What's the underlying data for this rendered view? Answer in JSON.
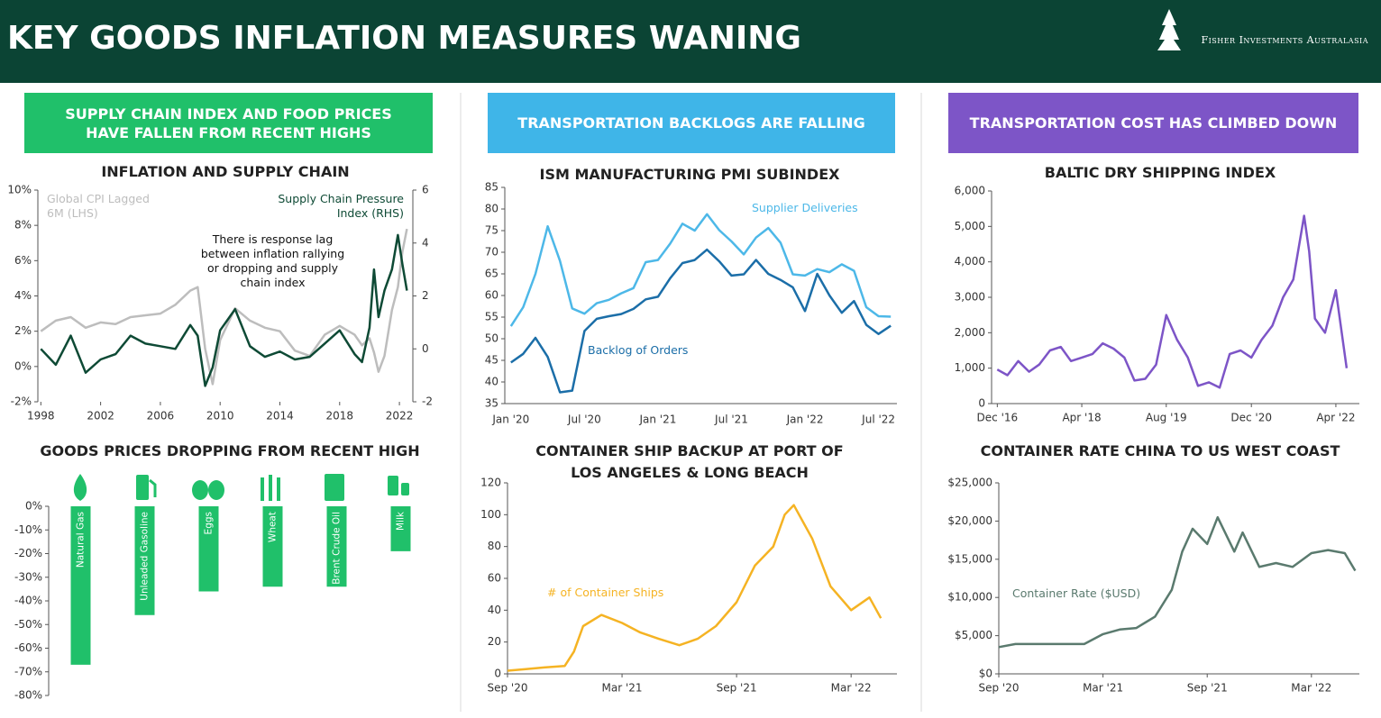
{
  "header": {
    "title": "KEY GOODS INFLATION MEASURES WANING",
    "logo": "Fisher Investments Australasia"
  },
  "banners": [
    "SUPPLY CHAIN INDEX AND FOOD PRICES HAVE FALLEN FROM RECENT HIGHS",
    "TRANSPORTATION BACKLOGS ARE FALLING",
    "TRANSPORTATION COST HAS CLIMBED DOWN"
  ],
  "chart_data": [
    {
      "type": "line",
      "title": "INFLATION AND SUPPLY CHAIN",
      "annotation": "There is response lag between inflation rallying or dropping and supply chain index",
      "x": [
        1998,
        1999,
        2000,
        2001,
        2002,
        2003,
        2004,
        2005,
        2006,
        2007,
        2008,
        2008.5,
        2009,
        2009.5,
        2010,
        2011,
        2012,
        2013,
        2014,
        2015,
        2016,
        2017,
        2018,
        2019,
        2019.5,
        2020,
        2020.3,
        2020.6,
        2021,
        2021.5,
        2021.9,
        2022.2,
        2022.5
      ],
      "xlim": [
        1997.8,
        2022.9
      ],
      "xticks": [
        1998,
        2002,
        2006,
        2010,
        2014,
        2018,
        2022
      ],
      "ylim": [
        -2,
        10
      ],
      "yticks": [
        {
          "value": -2,
          "label": "-2%"
        },
        {
          "value": 0,
          "label": "0%"
        },
        {
          "value": 2,
          "label": "2%"
        },
        {
          "value": 4,
          "label": "4%"
        },
        {
          "value": 6,
          "label": "6%"
        },
        {
          "value": 8,
          "label": "8%"
        },
        {
          "value": 10,
          "label": "10%"
        }
      ],
      "y2lim": [
        -2,
        6
      ],
      "y2ticks": [
        -2,
        0,
        2,
        4,
        6
      ],
      "series": [
        {
          "name": "Global CPI Lagged 6M (LHS)",
          "color": "#bdbdbd",
          "values": [
            2.0,
            2.6,
            2.8,
            2.2,
            2.5,
            2.4,
            2.8,
            2.9,
            3.0,
            3.5,
            4.3,
            4.5,
            1.0,
            -1.0,
            1.5,
            3.3,
            2.6,
            2.2,
            2.0,
            0.9,
            0.6,
            1.8,
            2.3,
            1.8,
            1.2,
            1.6,
            0.8,
            -0.3,
            0.6,
            3.2,
            4.5,
            6.5,
            7.8
          ]
        },
        {
          "name": "Supply Chain Pressure Index (RHS)",
          "color": "#0e4a35",
          "axis": "y2",
          "values": [
            0.0,
            -0.6,
            0.5,
            -0.9,
            -0.4,
            -0.2,
            0.5,
            0.2,
            0.1,
            0.0,
            0.9,
            0.5,
            -1.4,
            -0.7,
            0.7,
            1.5,
            0.1,
            -0.3,
            -0.1,
            -0.4,
            -0.3,
            0.2,
            0.7,
            -0.2,
            -0.5,
            0.8,
            3.0,
            1.2,
            2.2,
            3.0,
            4.3,
            3.2,
            2.2
          ]
        }
      ]
    },
    {
      "type": "line",
      "title": "ISM MANUFACTURING PMI SUBINDEX",
      "categories": [
        "Jan '20",
        null,
        null,
        null,
        null,
        null,
        "Jul '20",
        null,
        null,
        null,
        null,
        null,
        "Jan '21",
        null,
        null,
        null,
        null,
        null,
        "Jul '21",
        null,
        null,
        null,
        null,
        null,
        "Jan '22",
        null,
        null,
        null,
        null,
        null,
        "Jul '22",
        null
      ],
      "ylim": [
        35,
        85
      ],
      "yticks": [
        35,
        40,
        45,
        50,
        55,
        60,
        65,
        70,
        75,
        80,
        85
      ],
      "series": [
        {
          "name": "Supplier Deliveries",
          "color": "#4db8e8",
          "values": [
            52.9,
            57.3,
            65.0,
            76.0,
            68.0,
            57.0,
            55.8,
            58.2,
            59.0,
            60.5,
            61.7,
            67.7,
            68.2,
            72.0,
            76.6,
            75.0,
            78.8,
            75.1,
            72.5,
            69.5,
            73.4,
            75.6,
            72.2,
            64.9,
            64.6,
            66.1,
            65.4,
            67.2,
            65.7,
            57.3,
            55.2,
            55.1
          ]
        },
        {
          "name": "Backlog of Orders",
          "color": "#1b6ea8",
          "values": [
            44.5,
            46.5,
            50.2,
            45.8,
            37.6,
            38.0,
            51.8,
            54.6,
            55.2,
            55.7,
            56.9,
            59.1,
            59.7,
            64.0,
            67.5,
            68.2,
            70.6,
            67.9,
            64.6,
            64.9,
            68.2,
            65.0,
            63.6,
            61.9,
            56.4,
            65.0,
            60.0,
            56.0,
            58.7,
            53.2,
            51.1,
            53.0
          ]
        }
      ]
    },
    {
      "type": "line",
      "title": "BALTIC DRY SHIPPING INDEX",
      "x": [
        2016.92,
        2017.08,
        2017.25,
        2017.42,
        2017.58,
        2017.75,
        2017.92,
        2018.08,
        2018.25,
        2018.42,
        2018.58,
        2018.75,
        2018.92,
        2019.08,
        2019.25,
        2019.42,
        2019.58,
        2019.75,
        2019.92,
        2020.08,
        2020.25,
        2020.42,
        2020.58,
        2020.75,
        2020.92,
        2021.08,
        2021.25,
        2021.42,
        2021.58,
        2021.75,
        2021.83,
        2021.92,
        2022.08,
        2022.25,
        2022.42
      ],
      "xlim": [
        2016.83,
        2022.62
      ],
      "xticks": [
        {
          "value": 2016.92,
          "label": "Dec '16"
        },
        {
          "value": 2018.25,
          "label": "Apr '18"
        },
        {
          "value": 2019.58,
          "label": "Aug '19"
        },
        {
          "value": 2020.92,
          "label": "Dec '20"
        },
        {
          "value": 2022.25,
          "label": "Apr '22"
        }
      ],
      "ylim": [
        0,
        6000
      ],
      "yticks": [
        0,
        {
          "value": 1000,
          "label": "1,000"
        },
        {
          "value": 2000,
          "label": "2,000"
        },
        {
          "value": 3000,
          "label": "3,000"
        },
        {
          "value": 4000,
          "label": "4,000"
        },
        {
          "value": 5000,
          "label": "5,000"
        },
        {
          "value": 6000,
          "label": "6,000"
        }
      ],
      "series": [
        {
          "name": "Baltic Dry Index",
          "color": "#7d55c7",
          "values": [
            960,
            800,
            1200,
            900,
            1100,
            1500,
            1600,
            1200,
            1300,
            1400,
            1700,
            1550,
            1300,
            650,
            700,
            1100,
            2500,
            1800,
            1300,
            500,
            600,
            450,
            1400,
            1500,
            1300,
            1800,
            2200,
            3000,
            3500,
            5300,
            4300,
            2400,
            2000,
            3200,
            1000
          ]
        }
      ]
    },
    {
      "type": "bar",
      "title": "GOODS PRICES DROPPING FROM RECENT HIGH",
      "categories": [
        "Natural Gas",
        "Unleaded Gasoline",
        "Eggs",
        "Wheat",
        "Brent Crude Oil",
        "Milk"
      ],
      "values": [
        -67,
        -46,
        -36,
        -34,
        -34,
        -19
      ],
      "color": "#20c06a",
      "ylim": [
        -80,
        0
      ],
      "yticks": [
        {
          "value": 0,
          "label": "0%"
        },
        {
          "value": -10,
          "label": "-10%"
        },
        {
          "value": -20,
          "label": "-20%"
        },
        {
          "value": -30,
          "label": "-30%"
        },
        {
          "value": -40,
          "label": "-40%"
        },
        {
          "value": -50,
          "label": "-50%"
        },
        {
          "value": -60,
          "label": "-60%"
        },
        {
          "value": -70,
          "label": "-70%"
        },
        {
          "value": -80,
          "label": "-80%"
        }
      ]
    },
    {
      "type": "line",
      "title": "CONTAINER SHIP BACKUP AT PORT OF LOS ANGELES & LONG BEACH",
      "x": [
        2020.67,
        2020.75,
        2020.83,
        2020.92,
        2020.96,
        2021.0,
        2021.08,
        2021.17,
        2021.25,
        2021.33,
        2021.42,
        2021.5,
        2021.58,
        2021.67,
        2021.75,
        2021.83,
        2021.88,
        2021.92,
        2022.0,
        2022.08,
        2022.17,
        2022.25,
        2022.3
      ],
      "xlim": [
        2020.67,
        2022.37
      ],
      "xticks": [
        {
          "value": 2020.67,
          "label": "Sep '20"
        },
        {
          "value": 2021.17,
          "label": "Mar '21"
        },
        {
          "value": 2021.67,
          "label": "Sep '21"
        },
        {
          "value": 2022.17,
          "label": "Mar '22"
        }
      ],
      "ylim": [
        0,
        120
      ],
      "yticks": [
        0,
        20,
        40,
        60,
        80,
        100,
        120
      ],
      "series": [
        {
          "name": "# of Container Ships",
          "color": "#f5b323",
          "values": [
            2,
            3,
            4,
            5,
            14,
            30,
            37,
            32,
            26,
            22,
            18,
            22,
            30,
            45,
            68,
            80,
            100,
            106,
            85,
            55,
            40,
            48,
            35
          ]
        }
      ]
    },
    {
      "type": "line",
      "title": "CONTAINER RATE CHINA TO US WEST COAST",
      "x": [
        2020.67,
        2020.75,
        2020.92,
        2021.08,
        2021.17,
        2021.25,
        2021.33,
        2021.42,
        2021.5,
        2021.55,
        2021.6,
        2021.67,
        2021.72,
        2021.8,
        2021.84,
        2021.92,
        2022.0,
        2022.08,
        2022.17,
        2022.25,
        2022.33,
        2022.38
      ],
      "xlim": [
        2020.67,
        2022.4
      ],
      "xticks": [
        {
          "value": 2020.67,
          "label": "Sep '20"
        },
        {
          "value": 2021.17,
          "label": "Mar '21"
        },
        {
          "value": 2021.67,
          "label": "Sep '21"
        },
        {
          "value": 2022.17,
          "label": "Mar '22"
        }
      ],
      "ylim": [
        0,
        25000
      ],
      "yticks": [
        {
          "value": 0,
          "label": "$0"
        },
        {
          "value": 5000,
          "label": "$5,000"
        },
        {
          "value": 10000,
          "label": "$10,000"
        },
        {
          "value": 15000,
          "label": "$15,000"
        },
        {
          "value": 20000,
          "label": "$20,000"
        },
        {
          "value": 25000,
          "label": "$25,000"
        }
      ],
      "series": [
        {
          "name": "Container Rate ($USD)",
          "color": "#5a7a6e",
          "values": [
            3500,
            3900,
            3900,
            3900,
            5200,
            5800,
            6000,
            7500,
            11000,
            16000,
            19000,
            17000,
            20500,
            16000,
            18500,
            14000,
            14500,
            14000,
            15800,
            16200,
            15800,
            13500
          ]
        }
      ]
    }
  ]
}
